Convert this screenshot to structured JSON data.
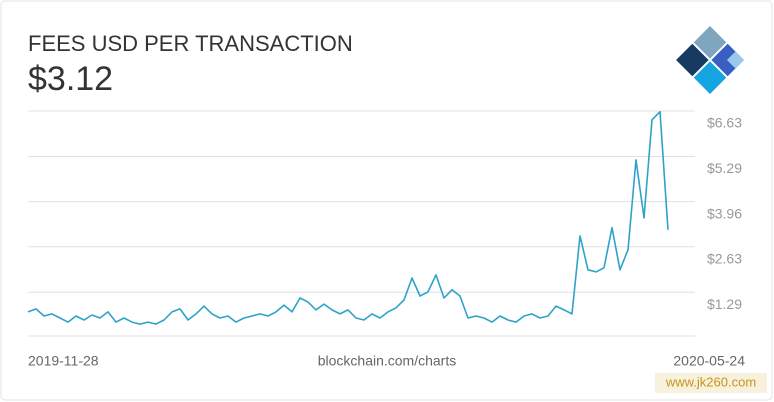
{
  "chart_data": {
    "type": "line",
    "title": "FEES USD PER TRANSACTION",
    "headline": "$3.12",
    "x_start_label": "2019-11-28",
    "x_end_label": "2020-05-24",
    "source": "blockchain.com/charts",
    "watermark": "www.jk260.com",
    "color": "#2ea3c8",
    "grid": true,
    "ylim": [
      0,
      6.63
    ],
    "yticks": [
      {
        "value": 1.29,
        "label": "$1.29"
      },
      {
        "value": 2.63,
        "label": "$2.63"
      },
      {
        "value": 3.96,
        "label": "$3.96"
      },
      {
        "value": 5.29,
        "label": "$5.29"
      },
      {
        "value": 6.63,
        "label": "$6.63"
      }
    ],
    "values": [
      0.71,
      0.8,
      0.59,
      0.65,
      0.53,
      0.41,
      0.59,
      0.47,
      0.62,
      0.53,
      0.71,
      0.41,
      0.53,
      0.41,
      0.35,
      0.41,
      0.35,
      0.47,
      0.71,
      0.8,
      0.47,
      0.65,
      0.88,
      0.65,
      0.53,
      0.59,
      0.41,
      0.53,
      0.59,
      0.65,
      0.59,
      0.71,
      0.91,
      0.71,
      1.12,
      1.0,
      0.77,
      0.94,
      0.77,
      0.65,
      0.77,
      0.53,
      0.47,
      0.65,
      0.53,
      0.71,
      0.83,
      1.06,
      1.71,
      1.18,
      1.3,
      1.8,
      1.12,
      1.36,
      1.18,
      0.53,
      0.59,
      0.53,
      0.41,
      0.59,
      0.47,
      0.41,
      0.59,
      0.65,
      0.53,
      0.59,
      0.88,
      0.77,
      0.65,
      2.95,
      1.95,
      1.89,
      2.01,
      3.19,
      1.95,
      2.54,
      5.19,
      3.48,
      6.37,
      6.61,
      3.13
    ]
  }
}
